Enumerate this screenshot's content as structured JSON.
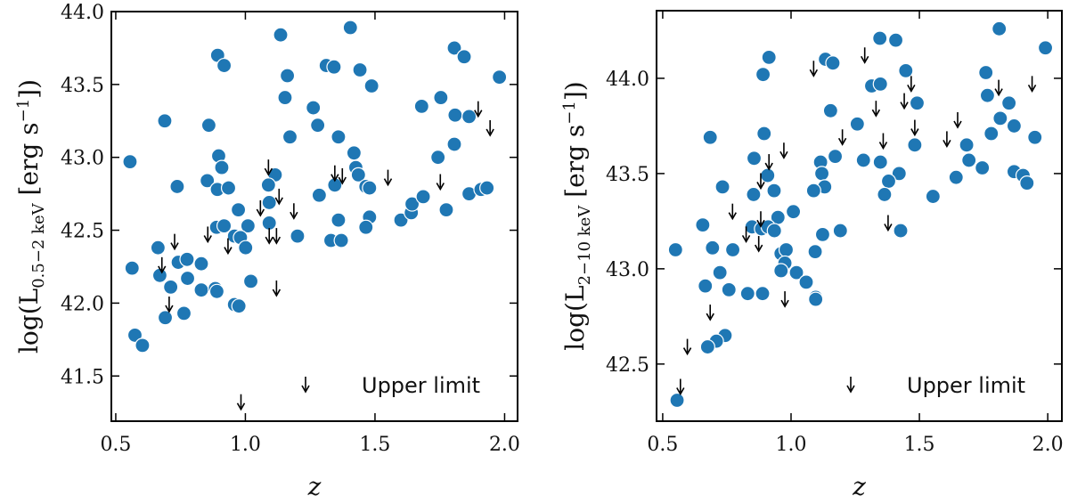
{
  "chart_data": [
    {
      "type": "scatter",
      "xlabel": "z",
      "ylabel": {
        "pre": "log(L",
        "sub": "0.5−2 keV",
        "mid": " [erg s",
        "sup": "−1",
        "post": "])"
      },
      "xlim": [
        0.483,
        2.05
      ],
      "ylim": [
        41.19,
        44.0
      ],
      "xticks": [
        "0.5",
        "1.0",
        "1.5",
        "2.0"
      ],
      "yticks": [
        "41.5",
        "42.0",
        "42.5",
        "43.0",
        "43.5",
        "44.0"
      ],
      "legend": {
        "label": "Upper limit",
        "placement": "bottom-right"
      },
      "point_color": "#1f77b4",
      "detections": [
        [
          1.136,
          43.84
        ],
        [
          0.893,
          43.7
        ],
        [
          0.918,
          43.63
        ],
        [
          1.162,
          43.56
        ],
        [
          1.153,
          43.41
        ],
        [
          0.689,
          43.25
        ],
        [
          0.859,
          43.22
        ],
        [
          1.172,
          43.14
        ],
        [
          0.555,
          42.97
        ],
        [
          0.897,
          43.01
        ],
        [
          0.909,
          42.93
        ],
        [
          1.115,
          42.88
        ],
        [
          0.737,
          42.8
        ],
        [
          0.853,
          42.84
        ],
        [
          0.892,
          42.78
        ],
        [
          0.935,
          42.79
        ],
        [
          1.089,
          42.81
        ],
        [
          1.092,
          42.69
        ],
        [
          0.973,
          42.64
        ],
        [
          1.01,
          42.53
        ],
        [
          0.889,
          42.52
        ],
        [
          0.918,
          42.53
        ],
        [
          1.092,
          42.55
        ],
        [
          0.958,
          42.46
        ],
        [
          0.981,
          42.45
        ],
        [
          1.001,
          42.38
        ],
        [
          1.201,
          42.46
        ],
        [
          0.663,
          42.38
        ],
        [
          0.563,
          42.24
        ],
        [
          0.67,
          42.19
        ],
        [
          0.741,
          42.28
        ],
        [
          0.775,
          42.3
        ],
        [
          0.83,
          42.27
        ],
        [
          0.777,
          42.17
        ],
        [
          0.712,
          42.11
        ],
        [
          0.83,
          42.09
        ],
        [
          0.884,
          42.1
        ],
        [
          0.89,
          42.08
        ],
        [
          1.021,
          42.15
        ],
        [
          0.958,
          41.99
        ],
        [
          0.975,
          41.98
        ],
        [
          0.691,
          41.9
        ],
        [
          0.763,
          41.93
        ],
        [
          0.574,
          41.78
        ],
        [
          0.603,
          41.71
        ],
        [
          1.262,
          43.34
        ],
        [
          1.405,
          43.89
        ],
        [
          1.312,
          43.63
        ],
        [
          1.342,
          43.62
        ],
        [
          1.442,
          43.6
        ],
        [
          1.487,
          43.49
        ],
        [
          1.279,
          43.22
        ],
        [
          1.359,
          43.14
        ],
        [
          1.419,
          43.03
        ],
        [
          1.426,
          42.93
        ],
        [
          1.436,
          42.88
        ],
        [
          1.465,
          42.8
        ],
        [
          1.479,
          42.79
        ],
        [
          1.345,
          42.81
        ],
        [
          1.285,
          42.74
        ],
        [
          1.359,
          42.57
        ],
        [
          1.33,
          42.43
        ],
        [
          1.37,
          42.43
        ],
        [
          1.479,
          42.59
        ],
        [
          1.465,
          42.52
        ],
        [
          1.6,
          42.57
        ],
        [
          1.64,
          42.62
        ],
        [
          1.643,
          42.68
        ],
        [
          1.686,
          42.73
        ],
        [
          1.775,
          42.64
        ],
        [
          1.743,
          43.0
        ],
        [
          1.806,
          43.09
        ],
        [
          1.806,
          43.75
        ],
        [
          1.844,
          43.69
        ],
        [
          1.68,
          43.35
        ],
        [
          1.754,
          43.41
        ],
        [
          1.809,
          43.29
        ],
        [
          1.863,
          43.28
        ],
        [
          1.98,
          43.55
        ],
        [
          1.863,
          42.75
        ],
        [
          1.909,
          42.78
        ],
        [
          1.932,
          42.79
        ]
      ],
      "upper_limits": [
        [
          0.727,
          42.42
        ],
        [
          0.855,
          42.47
        ],
        [
          0.933,
          42.39
        ],
        [
          1.058,
          42.65
        ],
        [
          1.089,
          42.93
        ],
        [
          1.13,
          42.73
        ],
        [
          1.187,
          42.63
        ],
        [
          1.092,
          42.46
        ],
        [
          1.12,
          42.46
        ],
        [
          1.12,
          42.1
        ],
        [
          0.706,
          41.99
        ],
        [
          0.678,
          42.26
        ],
        [
          0.983,
          41.32
        ],
        [
          1.345,
          42.89
        ],
        [
          1.374,
          42.87
        ],
        [
          1.55,
          42.86
        ],
        [
          1.752,
          42.83
        ],
        [
          1.898,
          43.33
        ],
        [
          1.944,
          43.2
        ]
      ]
    },
    {
      "type": "scatter",
      "xlabel": "z",
      "ylabel": {
        "pre": "log(L",
        "sub": "2−10 keV",
        "mid": " [erg s",
        "sup": "−1",
        "post": "])"
      },
      "xlim": [
        0.476,
        2.055
      ],
      "ylim": [
        42.2,
        44.355
      ],
      "xticks": [
        "0.5",
        "1.0",
        "1.5",
        "2.0"
      ],
      "yticks": [
        "42.5",
        "43.0",
        "43.5",
        "44.0"
      ],
      "legend": {
        "label": "Upper limit",
        "placement": "bottom-right"
      },
      "point_color": "#1f77b4",
      "detections": [
        [
          0.914,
          44.11
        ],
        [
          0.891,
          44.02
        ],
        [
          1.134,
          44.1
        ],
        [
          1.163,
          44.08
        ],
        [
          1.154,
          43.83
        ],
        [
          0.685,
          43.69
        ],
        [
          0.895,
          43.71
        ],
        [
          0.856,
          43.58
        ],
        [
          0.909,
          43.49
        ],
        [
          0.934,
          43.41
        ],
        [
          0.733,
          43.43
        ],
        [
          0.854,
          43.39
        ],
        [
          1.115,
          43.56
        ],
        [
          1.12,
          43.5
        ],
        [
          1.131,
          43.43
        ],
        [
          1.088,
          43.41
        ],
        [
          1.172,
          43.59
        ],
        [
          1.009,
          43.3
        ],
        [
          0.949,
          43.27
        ],
        [
          0.656,
          43.23
        ],
        [
          0.848,
          43.22
        ],
        [
          0.885,
          43.21
        ],
        [
          0.911,
          43.22
        ],
        [
          0.935,
          43.2
        ],
        [
          1.123,
          43.18
        ],
        [
          1.192,
          43.2
        ],
        [
          0.55,
          43.1
        ],
        [
          0.694,
          43.11
        ],
        [
          0.773,
          43.1
        ],
        [
          0.961,
          43.08
        ],
        [
          0.981,
          43.1
        ],
        [
          1.094,
          43.09
        ],
        [
          0.976,
          43.03
        ],
        [
          0.961,
          42.99
        ],
        [
          1.021,
          42.98
        ],
        [
          0.723,
          42.98
        ],
        [
          1.059,
          42.93
        ],
        [
          0.666,
          42.91
        ],
        [
          0.758,
          42.89
        ],
        [
          0.831,
          42.87
        ],
        [
          0.889,
          42.87
        ],
        [
          1.096,
          42.85
        ],
        [
          1.096,
          42.84
        ],
        [
          0.743,
          42.65
        ],
        [
          0.709,
          42.62
        ],
        [
          0.675,
          42.59
        ],
        [
          0.556,
          42.31
        ],
        [
          1.346,
          44.21
        ],
        [
          1.408,
          44.2
        ],
        [
          1.811,
          44.26
        ],
        [
          1.991,
          44.16
        ],
        [
          1.447,
          44.04
        ],
        [
          1.759,
          44.03
        ],
        [
          1.314,
          43.96
        ],
        [
          1.348,
          43.97
        ],
        [
          1.491,
          43.87
        ],
        [
          1.765,
          43.91
        ],
        [
          1.849,
          43.87
        ],
        [
          1.815,
          43.79
        ],
        [
          1.869,
          43.75
        ],
        [
          1.258,
          43.76
        ],
        [
          1.78,
          43.71
        ],
        [
          1.95,
          43.69
        ],
        [
          1.482,
          43.65
        ],
        [
          1.684,
          43.65
        ],
        [
          1.282,
          43.57
        ],
        [
          1.348,
          43.56
        ],
        [
          1.693,
          43.57
        ],
        [
          1.745,
          43.53
        ],
        [
          1.869,
          43.51
        ],
        [
          1.904,
          43.49
        ],
        [
          1.919,
          43.45
        ],
        [
          1.421,
          43.5
        ],
        [
          1.38,
          43.46
        ],
        [
          1.364,
          43.39
        ],
        [
          1.643,
          43.48
        ],
        [
          1.553,
          43.38
        ],
        [
          1.427,
          43.2
        ]
      ],
      "upper_limits": [
        [
          1.088,
          44.05
        ],
        [
          1.2,
          43.69
        ],
        [
          0.972,
          43.62
        ],
        [
          0.914,
          43.56
        ],
        [
          0.882,
          43.46
        ],
        [
          0.772,
          43.3
        ],
        [
          0.882,
          43.26
        ],
        [
          0.825,
          43.18
        ],
        [
          0.874,
          43.13
        ],
        [
          0.976,
          42.84
        ],
        [
          0.685,
          42.77
        ],
        [
          0.596,
          42.59
        ],
        [
          0.569,
          42.38
        ],
        [
          1.287,
          44.12
        ],
        [
          1.468,
          43.97
        ],
        [
          1.441,
          43.88
        ],
        [
          1.331,
          43.84
        ],
        [
          1.482,
          43.74
        ],
        [
          1.649,
          43.78
        ],
        [
          1.359,
          43.67
        ],
        [
          1.607,
          43.68
        ],
        [
          1.809,
          43.95
        ],
        [
          1.939,
          43.97
        ],
        [
          1.378,
          43.24
        ]
      ]
    }
  ]
}
